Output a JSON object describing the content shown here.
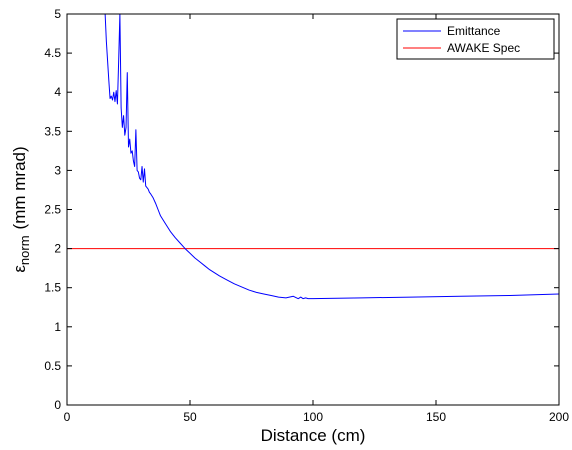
{
  "chart_data": {
    "type": "line",
    "xlabel": "Distance (cm)",
    "ylabel": {
      "symbol": "ε",
      "subscript": "norm",
      "unit": "(mm mrad)"
    },
    "xlim": [
      0,
      200
    ],
    "ylim": [
      0,
      5
    ],
    "xticks": [
      0,
      50,
      100,
      150,
      200
    ],
    "xtick_labels": [
      "0",
      "50",
      "100",
      "150",
      "200"
    ],
    "yticks": [
      0,
      0.5,
      1,
      1.5,
      2,
      2.5,
      3,
      3.5,
      4,
      4.5,
      5
    ],
    "ytick_labels": [
      "0",
      "0.5",
      "1",
      "1.5",
      "2",
      "2.5",
      "3",
      "3.5",
      "4",
      "4.5",
      "5"
    ],
    "grid": false,
    "legend_position": "top-right",
    "series": [
      {
        "name": "Emittance",
        "color": "#0000ff",
        "x": [
          15.5,
          16,
          16.5,
          17,
          17.5,
          18,
          18.5,
          19,
          19.5,
          20,
          20.5,
          21,
          21.5,
          22,
          22.5,
          23,
          23.5,
          24,
          24.5,
          25,
          25.5,
          26,
          26.5,
          27,
          27.5,
          28,
          28.5,
          29,
          29.5,
          30,
          30.5,
          31,
          31.5,
          32,
          32.5,
          33,
          33.5,
          34,
          35,
          36,
          37,
          38,
          40,
          42,
          44,
          46,
          48,
          50,
          52,
          54,
          56,
          58,
          60,
          62,
          65,
          68,
          71,
          74,
          77,
          80,
          83,
          86,
          89,
          92,
          94,
          95,
          96,
          97,
          98,
          99,
          100,
          120,
          140,
          160,
          180,
          200
        ],
        "y": [
          5.0,
          4.65,
          4.4,
          4.15,
          3.92,
          3.95,
          3.9,
          4.0,
          3.88,
          4.02,
          3.85,
          4.4,
          5.0,
          3.8,
          3.55,
          3.7,
          3.45,
          3.55,
          4.25,
          3.3,
          3.4,
          3.22,
          3.25,
          3.12,
          3.05,
          3.52,
          3.0,
          2.98,
          2.9,
          2.88,
          3.05,
          2.85,
          3.02,
          2.8,
          2.78,
          2.76,
          2.72,
          2.7,
          2.65,
          2.58,
          2.5,
          2.42,
          2.32,
          2.22,
          2.14,
          2.07,
          2.0,
          1.94,
          1.88,
          1.83,
          1.78,
          1.73,
          1.69,
          1.65,
          1.6,
          1.55,
          1.51,
          1.47,
          1.44,
          1.42,
          1.4,
          1.38,
          1.37,
          1.39,
          1.36,
          1.38,
          1.36,
          1.37,
          1.36,
          1.36,
          1.36,
          1.37,
          1.38,
          1.39,
          1.4,
          1.42
        ]
      },
      {
        "name": "AWAKE Spec",
        "color": "#ff0000",
        "x": [
          0,
          200
        ],
        "y": [
          2,
          2
        ]
      }
    ]
  }
}
